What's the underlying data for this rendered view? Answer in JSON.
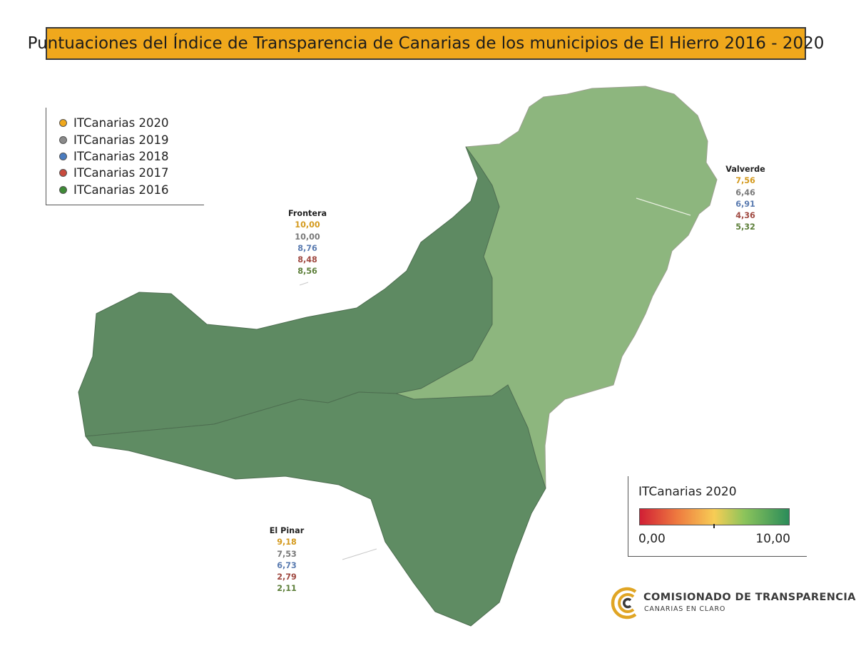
{
  "title": "Puntuaciones del Índice de Transparencia de Canarias de los municipios de El Hierro 2016 - 2020",
  "legend": {
    "items": [
      {
        "label": "ITCanarias 2020",
        "color": "#f0a81c"
      },
      {
        "label": "ITCanarias 2019",
        "color": "#8a8a8a"
      },
      {
        "label": "ITCanarias 2018",
        "color": "#4a7cc0"
      },
      {
        "label": "ITCanarias 2017",
        "color": "#c94a3d"
      },
      {
        "label": "ITCanarias 2016",
        "color": "#3e8a36"
      }
    ]
  },
  "series_colors": [
    "#d49a1e",
    "#7a7a7a",
    "#5a7bb0",
    "#a04a42",
    "#5d7f3a"
  ],
  "municipalities": [
    {
      "name": "Frontera",
      "values": [
        "10,00",
        "10,00",
        "8,76",
        "8,48",
        "8,56"
      ],
      "fill": "#5e8a62"
    },
    {
      "name": "Valverde",
      "values": [
        "7,56",
        "6,46",
        "6,91",
        "4,36",
        "5,32"
      ],
      "fill": "#8db67e"
    },
    {
      "name": "El Pinar",
      "values": [
        "9,18",
        "7,53",
        "6,73",
        "2,79",
        "2,11"
      ],
      "fill": "#5f8c63"
    }
  ],
  "color_scale": {
    "title": "ITCanarias 2020",
    "min_label": "0,00",
    "max_label": "10,00",
    "colors": [
      "#d11f35",
      "#ee7a3f",
      "#f7cd55",
      "#8cc45b",
      "#2b8c5a"
    ]
  },
  "logo": {
    "main": "COMISIONADO DE TRANSPARENCIA",
    "sub": "CANARIAS EN CLARO"
  }
}
